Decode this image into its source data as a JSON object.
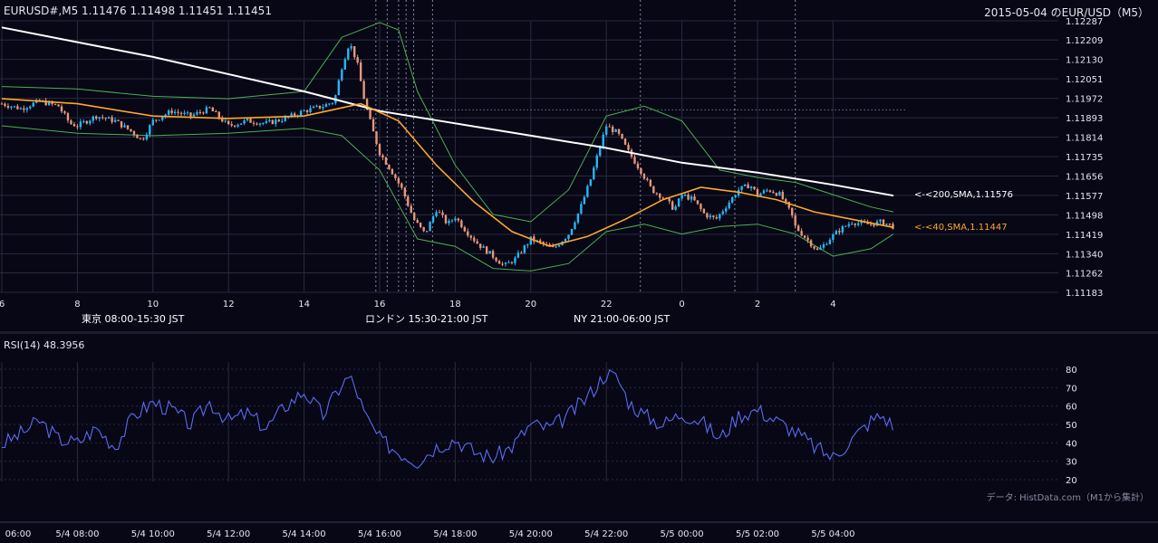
{
  "header": {
    "symbol_quote": "EURUSD#,M5 1.11476 1.11498 1.11451 1.11451",
    "title": "2015-05-04 のEUR/USD（M5）"
  },
  "sessions": [
    {
      "label": "東京 08:00-15:30 JST",
      "color": "#1f4a7a"
    },
    {
      "label": "ロンドン 15:30-21:00 JST",
      "color": "#7a4c10"
    },
    {
      "label": "NY 21:00-06:00 JST",
      "color": "#1f6a3e"
    }
  ],
  "rsi_label": "RSI(14) 48.3956",
  "source_note": "データ: HistData.com（M1から集計）",
  "ma_labels": {
    "sma200": "<-<200,SMA,1.11576",
    "sma40": "<-<40,SMA,1.11447"
  },
  "colors": {
    "background": "#070716",
    "bull": "#29b6f6",
    "bear": "#e9967a",
    "sma200": "#ffffff",
    "sma40": "#ffa726",
    "bollinger": "#4caf50",
    "rsi": "#5c6bf0",
    "grid": "#2a2a40"
  },
  "chart_data": [
    {
      "type": "candlestick",
      "y_ticks": [
        "1.12287",
        "1.12209",
        "1.12130",
        "1.12051",
        "1.11972",
        "1.11893",
        "1.11814",
        "1.11735",
        "1.11656",
        "1.11577",
        "1.11498",
        "1.11419",
        "1.11340",
        "1.11262",
        "1.11183"
      ],
      "ylim": [
        1.11183,
        1.12287
      ],
      "x_ticks": [
        "6",
        "8",
        "10",
        "12",
        "14",
        "16",
        "18",
        "20",
        "22",
        "0",
        "2",
        "4"
      ],
      "close_path": [
        [
          6.0,
          1.1195
        ],
        [
          6.5,
          1.1193
        ],
        [
          7.0,
          1.1196
        ],
        [
          7.5,
          1.1194
        ],
        [
          7.8,
          1.1187
        ],
        [
          8.0,
          1.1186
        ],
        [
          8.5,
          1.119
        ],
        [
          9.0,
          1.1188
        ],
        [
          9.5,
          1.1183
        ],
        [
          9.7,
          1.118
        ],
        [
          10.0,
          1.1188
        ],
        [
          10.5,
          1.1192
        ],
        [
          11.0,
          1.119
        ],
        [
          11.5,
          1.1193
        ],
        [
          12.0,
          1.1186
        ],
        [
          12.5,
          1.1188
        ],
        [
          13.0,
          1.1187
        ],
        [
          13.5,
          1.1189
        ],
        [
          14.0,
          1.1192
        ],
        [
          14.5,
          1.1194
        ],
        [
          14.8,
          1.1196
        ],
        [
          15.0,
          1.121
        ],
        [
          15.2,
          1.122
        ],
        [
          15.4,
          1.1212
        ],
        [
          15.6,
          1.1196
        ],
        [
          15.8,
          1.1185
        ],
        [
          16.0,
          1.1175
        ],
        [
          16.3,
          1.1168
        ],
        [
          16.6,
          1.116
        ],
        [
          16.9,
          1.1148
        ],
        [
          17.2,
          1.1142
        ],
        [
          17.5,
          1.1152
        ],
        [
          17.8,
          1.1146
        ],
        [
          18.0,
          1.1149
        ],
        [
          18.3,
          1.1143
        ],
        [
          18.6,
          1.1138
        ],
        [
          19.0,
          1.1133
        ],
        [
          19.3,
          1.1129
        ],
        [
          19.6,
          1.1132
        ],
        [
          20.0,
          1.114
        ],
        [
          20.3,
          1.1138
        ],
        [
          20.6,
          1.1136
        ],
        [
          21.0,
          1.1142
        ],
        [
          21.3,
          1.1152
        ],
        [
          21.6,
          1.1165
        ],
        [
          21.8,
          1.1176
        ],
        [
          22.0,
          1.1186
        ],
        [
          22.3,
          1.1183
        ],
        [
          22.6,
          1.1175
        ],
        [
          22.9,
          1.1168
        ],
        [
          23.2,
          1.116
        ],
        [
          23.5,
          1.1157
        ],
        [
          23.8,
          1.1152
        ],
        [
          24.0,
          1.1158
        ],
        [
          24.3,
          1.1156
        ],
        [
          24.6,
          1.115
        ],
        [
          24.9,
          1.1148
        ],
        [
          25.2,
          1.1154
        ],
        [
          25.5,
          1.116
        ],
        [
          25.8,
          1.1162
        ],
        [
          26.0,
          1.1158
        ],
        [
          26.3,
          1.116
        ],
        [
          26.6,
          1.1158
        ],
        [
          26.9,
          1.115
        ],
        [
          27.0,
          1.1145
        ],
        [
          27.3,
          1.114
        ],
        [
          27.6,
          1.1135
        ],
        [
          27.9,
          1.114
        ],
        [
          28.2,
          1.1144
        ],
        [
          28.5,
          1.1147
        ],
        [
          28.8,
          1.1146
        ],
        [
          29.0,
          1.1146
        ],
        [
          29.3,
          1.1147
        ],
        [
          29.6,
          1.1145
        ]
      ],
      "sma200_path": [
        [
          6.0,
          1.1226
        ],
        [
          10.0,
          1.1214
        ],
        [
          14.0,
          1.12
        ],
        [
          16.0,
          1.1192
        ],
        [
          18.0,
          1.1187
        ],
        [
          20.0,
          1.1182
        ],
        [
          22.0,
          1.1177
        ],
        [
          24.0,
          1.1171
        ],
        [
          26.0,
          1.1167
        ],
        [
          28.0,
          1.1162
        ],
        [
          29.6,
          1.11576
        ]
      ],
      "sma40_path": [
        [
          6.0,
          1.1197
        ],
        [
          8.0,
          1.1195
        ],
        [
          10.0,
          1.119
        ],
        [
          12.0,
          1.1189
        ],
        [
          14.0,
          1.119
        ],
        [
          15.5,
          1.1195
        ],
        [
          16.5,
          1.1188
        ],
        [
          17.5,
          1.117
        ],
        [
          18.5,
          1.1155
        ],
        [
          19.5,
          1.1143
        ],
        [
          20.5,
          1.1137
        ],
        [
          21.5,
          1.1141
        ],
        [
          22.5,
          1.1148
        ],
        [
          23.5,
          1.1156
        ],
        [
          24.5,
          1.1161
        ],
        [
          25.5,
          1.1159
        ],
        [
          26.5,
          1.1156
        ],
        [
          27.5,
          1.1151
        ],
        [
          28.5,
          1.1148
        ],
        [
          29.6,
          1.11447
        ]
      ],
      "bollinger_upper": [
        [
          6.0,
          1.1202
        ],
        [
          8.0,
          1.1201
        ],
        [
          10.0,
          1.1198
        ],
        [
          12.0,
          1.1197
        ],
        [
          14.0,
          1.12
        ],
        [
          15.0,
          1.1222
        ],
        [
          16.0,
          1.1228
        ],
        [
          16.5,
          1.1225
        ],
        [
          17.0,
          1.12
        ],
        [
          18.0,
          1.117
        ],
        [
          19.0,
          1.115
        ],
        [
          20.0,
          1.1147
        ],
        [
          21.0,
          1.116
        ],
        [
          22.0,
          1.119
        ],
        [
          23.0,
          1.1194
        ],
        [
          24.0,
          1.1188
        ],
        [
          25.0,
          1.1168
        ],
        [
          26.0,
          1.1165
        ],
        [
          27.0,
          1.1163
        ],
        [
          28.0,
          1.1158
        ],
        [
          29.0,
          1.1153
        ],
        [
          29.6,
          1.1151
        ]
      ],
      "bollinger_lower": [
        [
          6.0,
          1.1186
        ],
        [
          8.0,
          1.1183
        ],
        [
          10.0,
          1.1182
        ],
        [
          12.0,
          1.1183
        ],
        [
          14.0,
          1.1185
        ],
        [
          15.0,
          1.1182
        ],
        [
          16.0,
          1.1168
        ],
        [
          17.0,
          1.114
        ],
        [
          18.0,
          1.1137
        ],
        [
          19.0,
          1.1128
        ],
        [
          20.0,
          1.1127
        ],
        [
          21.0,
          1.113
        ],
        [
          22.0,
          1.1143
        ],
        [
          23.0,
          1.1146
        ],
        [
          24.0,
          1.1142
        ],
        [
          25.0,
          1.1145
        ],
        [
          26.0,
          1.1146
        ],
        [
          27.0,
          1.1142
        ],
        [
          28.0,
          1.1133
        ],
        [
          29.0,
          1.1136
        ],
        [
          29.6,
          1.1142
        ]
      ],
      "hline": 1.11925
    },
    {
      "type": "line",
      "y_ticks": [
        "80",
        "70",
        "60",
        "50",
        "40",
        "30",
        "20"
      ],
      "ylim": [
        20,
        80
      ],
      "path": [
        [
          6.0,
          39
        ],
        [
          6.5,
          45
        ],
        [
          7.0,
          52
        ],
        [
          7.5,
          42
        ],
        [
          8.0,
          40
        ],
        [
          8.5,
          48
        ],
        [
          9.0,
          38
        ],
        [
          9.5,
          55
        ],
        [
          10.0,
          62
        ],
        [
          10.5,
          58
        ],
        [
          11.0,
          50
        ],
        [
          11.5,
          62
        ],
        [
          12.0,
          52
        ],
        [
          12.5,
          56
        ],
        [
          13.0,
          48
        ],
        [
          13.5,
          60
        ],
        [
          14.0,
          68
        ],
        [
          14.5,
          55
        ],
        [
          15.0,
          72
        ],
        [
          15.2,
          76
        ],
        [
          15.4,
          68
        ],
        [
          15.6,
          55
        ],
        [
          16.0,
          42
        ],
        [
          16.5,
          35
        ],
        [
          17.0,
          30
        ],
        [
          17.5,
          38
        ],
        [
          18.0,
          42
        ],
        [
          18.5,
          35
        ],
        [
          19.0,
          32
        ],
        [
          19.5,
          38
        ],
        [
          20.0,
          50
        ],
        [
          20.5,
          48
        ],
        [
          21.0,
          55
        ],
        [
          21.5,
          65
        ],
        [
          22.0,
          78
        ],
        [
          22.3,
          75
        ],
        [
          22.6,
          62
        ],
        [
          23.0,
          55
        ],
        [
          23.5,
          50
        ],
        [
          24.0,
          56
        ],
        [
          24.5,
          52
        ],
        [
          25.0,
          42
        ],
        [
          25.5,
          55
        ],
        [
          26.0,
          58
        ],
        [
          26.5,
          52
        ],
        [
          27.0,
          46
        ],
        [
          27.5,
          38
        ],
        [
          28.0,
          32
        ],
        [
          28.5,
          42
        ],
        [
          29.0,
          52
        ],
        [
          29.3,
          55
        ],
        [
          29.6,
          49
        ]
      ]
    }
  ],
  "bottom_axis": [
    "06:00",
    "5/4 08:00",
    "5/4 10:00",
    "5/4 12:00",
    "5/4 14:00",
    "5/4 16:00",
    "5/4 18:00",
    "5/4 20:00",
    "5/4 22:00",
    "5/5 00:00",
    "5/5 02:00",
    "5/5 04:00"
  ]
}
